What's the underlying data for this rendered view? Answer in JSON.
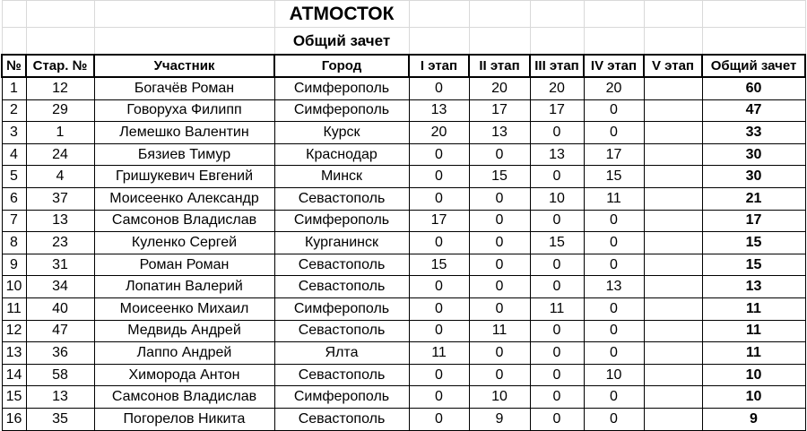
{
  "title": "АТМОСТОК",
  "subtitle": "Общий зачет",
  "columns": [
    "№",
    "Стар. №",
    "Участник",
    "Город",
    "I этап",
    "II этап",
    "III этап",
    "IV этап",
    "V этап",
    "Общий зачет"
  ],
  "rows": [
    [
      "1",
      "12",
      "Богачёв Роман",
      "Симферополь",
      "0",
      "20",
      "20",
      "20",
      "",
      "60"
    ],
    [
      "2",
      "29",
      "Говоруха Филипп",
      "Симферополь",
      "13",
      "17",
      "17",
      "0",
      "",
      "47"
    ],
    [
      "3",
      "1",
      "Лемешко Валентин",
      "Курск",
      "20",
      "13",
      "0",
      "0",
      "",
      "33"
    ],
    [
      "4",
      "24",
      "Бязиев Тимур",
      "Краснодар",
      "0",
      "0",
      "13",
      "17",
      "",
      "30"
    ],
    [
      "5",
      "4",
      "Гришукевич Евгений",
      "Минск",
      "0",
      "15",
      "0",
      "15",
      "",
      "30"
    ],
    [
      "6",
      "37",
      "Моисеенко Александр",
      "Севастополь",
      "0",
      "0",
      "10",
      "11",
      "",
      "21"
    ],
    [
      "7",
      "13",
      "Самсонов Владислав",
      "Симферополь",
      "17",
      "0",
      "0",
      "0",
      "",
      "17"
    ],
    [
      "8",
      "23",
      "Куленко Сергей",
      "Курганинск",
      "0",
      "0",
      "15",
      "0",
      "",
      "15"
    ],
    [
      "9",
      "31",
      "Роман Роман",
      "Севастополь",
      "15",
      "0",
      "0",
      "0",
      "",
      "15"
    ],
    [
      "10",
      "34",
      "Лопатин Валерий",
      "Севастополь",
      "0",
      "0",
      "0",
      "13",
      "",
      "13"
    ],
    [
      "11",
      "40",
      "Моисеенко Михаил",
      "Симферополь",
      "0",
      "0",
      "11",
      "0",
      "",
      "11"
    ],
    [
      "12",
      "47",
      "Медвидь Андрей",
      "Севастополь",
      "0",
      "11",
      "0",
      "0",
      "",
      "11"
    ],
    [
      "13",
      "36",
      "Лаппо Андрей",
      "Ялта",
      "11",
      "0",
      "0",
      "0",
      "",
      "11"
    ],
    [
      "14",
      "58",
      "Химорода Антон",
      "Севастополь",
      "0",
      "0",
      "0",
      "10",
      "",
      "10"
    ],
    [
      "15",
      "13",
      "Самсонов Владислав",
      "Симферополь",
      "0",
      "10",
      "0",
      "0",
      "",
      "10"
    ],
    [
      "16",
      "35",
      "Погорелов Никита",
      "Севастополь",
      "0",
      "9",
      "0",
      "0",
      "",
      "9"
    ]
  ]
}
